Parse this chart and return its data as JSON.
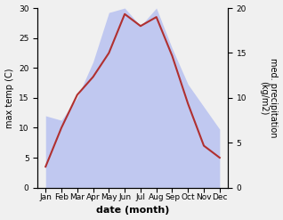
{
  "months": [
    "Jan",
    "Feb",
    "Mar",
    "Apr",
    "May",
    "Jun",
    "Jul",
    "Aug",
    "Sep",
    "Oct",
    "Nov",
    "Dec"
  ],
  "temperature": [
    3.5,
    10.0,
    15.5,
    18.5,
    22.5,
    29.0,
    27.0,
    28.5,
    22.0,
    14.0,
    7.0,
    5.0
  ],
  "precipitation": [
    8.0,
    7.5,
    10.0,
    14.0,
    19.5,
    20.0,
    18.0,
    20.0,
    15.5,
    11.5,
    9.0,
    6.5
  ],
  "temp_color": "#b03030",
  "precip_color": "#c0c8f0",
  "temp_ylim": [
    0,
    30
  ],
  "precip_ylim": [
    0,
    20
  ],
  "ylabel_left": "max temp (C)",
  "ylabel_right": "med. precipitation\n(kg/m2)",
  "xlabel": "date (month)",
  "fig_width": 3.18,
  "fig_height": 2.47,
  "dpi": 100,
  "left_yticks": [
    0,
    5,
    10,
    15,
    20,
    25,
    30
  ],
  "right_yticks": [
    0,
    5,
    10,
    15,
    20
  ],
  "temp_linewidth": 1.5,
  "xlabel_fontsize": 8,
  "ylabel_fontsize": 7,
  "tick_fontsize": 6.5
}
